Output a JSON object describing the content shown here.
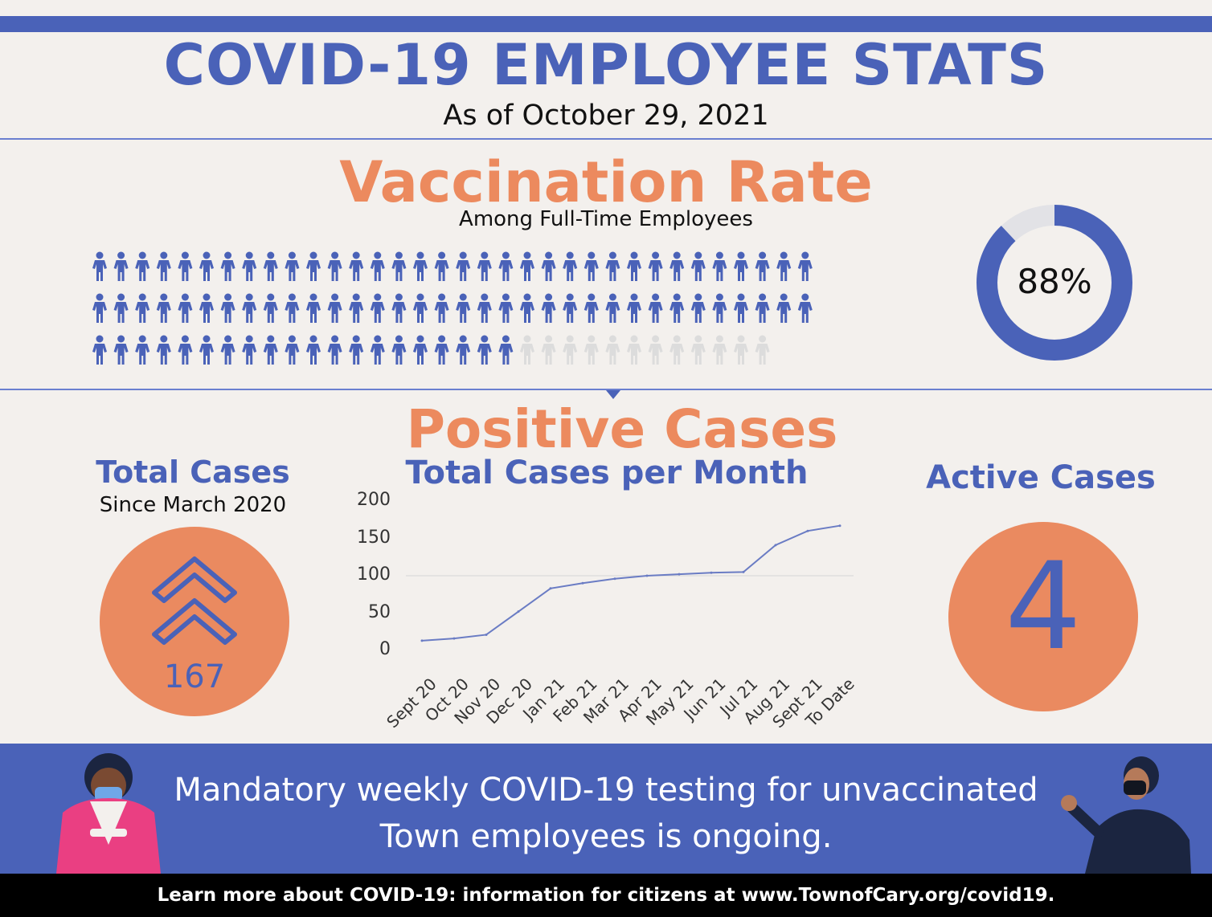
{
  "header": {
    "title": "COVID-19 EMPLOYEE STATS",
    "subtitle": "As of October 29, 2021"
  },
  "vaccination": {
    "title": "Vaccination Rate",
    "subtitle": "Among Full-Time Employees",
    "rate_label": "88%",
    "rate_value": 0.88,
    "people_icon": "person-icon",
    "colors": {
      "filled": "#4a62b8",
      "empty": "#dcdcdc"
    }
  },
  "positive_cases": {
    "title": "Positive Cases",
    "total": {
      "title": "Total Cases",
      "subtitle": "Since March 2020",
      "value": "167",
      "icon": "double-chevron-up-icon"
    },
    "monthly_title": "Total Cases per Month",
    "active": {
      "title": "Active Cases",
      "value": "4"
    }
  },
  "chart_data": {
    "type": "line",
    "categories": [
      "Sept 20",
      "Oct 20",
      "Nov 20",
      "Dec 20",
      "Jan 21",
      "Feb 21",
      "Mar 21",
      "Apr 21",
      "May 21",
      "Jun 21",
      "Jul 21",
      "Aug 21",
      "Sept 21",
      "To Date"
    ],
    "values": [
      13,
      16,
      21,
      52,
      83,
      90,
      96,
      100,
      102,
      104,
      105,
      141,
      160,
      167
    ],
    "yticks": [
      0,
      50,
      100,
      150,
      200
    ],
    "ylim": [
      0,
      200
    ],
    "grid": "y=100 only",
    "color": "#6a7cc4"
  },
  "banner": {
    "line1": "Mandatory weekly COVID-19 testing for unvaccinated",
    "line2": "Town employees is ongoing."
  },
  "footer": {
    "text": "Learn more about COVID-19: information for citizens at www.TownofCary.org/covid19."
  },
  "colors": {
    "brand_blue": "#4a62b8",
    "accent_orange": "#ec8a5e",
    "background": "#f3f0ed"
  }
}
